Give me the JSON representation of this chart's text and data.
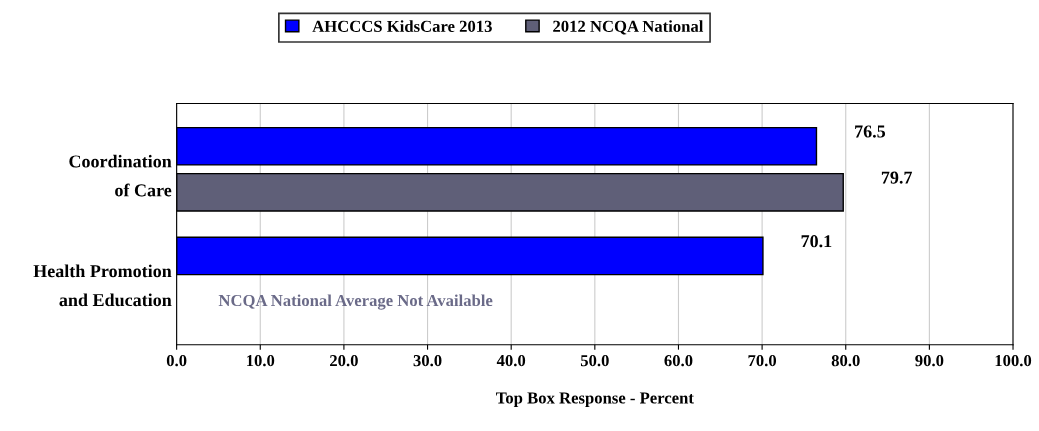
{
  "chart_data": {
    "type": "bar",
    "orientation": "horizontal",
    "categories": [
      "Coordination\nof Care",
      "Health Promotion\nand Education"
    ],
    "series": [
      {
        "name": "AHCCCS KidsCare 2013",
        "color": "#0000ff",
        "values": [
          76.5,
          70.1
        ]
      },
      {
        "name": "2012 NCQA National",
        "color": "#5f5f78",
        "values": [
          79.7,
          null
        ]
      }
    ],
    "xlabel": "Top Box Response - Percent",
    "xlim": [
      0,
      100
    ],
    "xticks": [
      {
        "value": 0,
        "label": "0.0"
      },
      {
        "value": 10,
        "label": "10.0"
      },
      {
        "value": 20,
        "label": "20.0"
      },
      {
        "value": 30,
        "label": "30.0"
      },
      {
        "value": 40,
        "label": "40.0"
      },
      {
        "value": 50,
        "label": "50.0"
      },
      {
        "value": 60,
        "label": "60.0"
      },
      {
        "value": 70,
        "label": "70.0"
      },
      {
        "value": 80,
        "label": "80.0"
      },
      {
        "value": 90,
        "label": "90.0"
      },
      {
        "value": 100,
        "label": "100.0"
      }
    ],
    "annotations": [
      "NCQA National Average Not Available"
    ],
    "data_labels": true,
    "grid": "x",
    "legend": "top"
  }
}
